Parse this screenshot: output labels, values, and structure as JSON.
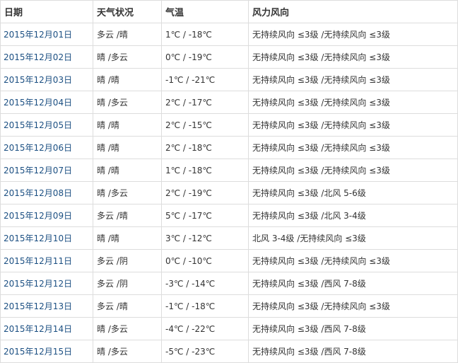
{
  "headers": [
    "日期",
    "天气状况",
    "气温",
    "风力风向"
  ],
  "rows": [
    [
      "2015年12月01日",
      "多云 /晴",
      "1℃ / -18℃",
      "无持续风向 ≤3级 /无持续风向 ≤3级"
    ],
    [
      "2015年12月02日",
      "晴 /多云",
      "0℃ / -19℃",
      "无持续风向 ≤3级 /无持续风向 ≤3级"
    ],
    [
      "2015年12月03日",
      "晴 /晴",
      "-1℃ / -21℃",
      "无持续风向 ≤3级 /无持续风向 ≤3级"
    ],
    [
      "2015年12月04日",
      "晴 /多云",
      "2℃ / -17℃",
      "无持续风向 ≤3级 /无持续风向 ≤3级"
    ],
    [
      "2015年12月05日",
      "晴 /晴",
      "2℃ / -15℃",
      "无持续风向 ≤3级 /无持续风向 ≤3级"
    ],
    [
      "2015年12月06日",
      "晴 /晴",
      "2℃ / -18℃",
      "无持续风向 ≤3级 /无持续风向 ≤3级"
    ],
    [
      "2015年12月07日",
      "晴 /晴",
      "1℃ / -18℃",
      "无持续风向 ≤3级 /无持续风向 ≤3级"
    ],
    [
      "2015年12月08日",
      "晴 /多云",
      "2℃ / -19℃",
      "无持续风向 ≤3级 /北风 5-6级"
    ],
    [
      "2015年12月09日",
      "多云 /晴",
      "5℃ / -17℃",
      "无持续风向 ≤3级 /北风 3-4级"
    ],
    [
      "2015年12月10日",
      "晴 /晴",
      "3℃ / -12℃",
      "北风 3-4级 /无持续风向 ≤3级"
    ],
    [
      "2015年12月11日",
      "多云 /阴",
      "0℃ / -10℃",
      "无持续风向 ≤3级 /无持续风向 ≤3级"
    ],
    [
      "2015年12月12日",
      "多云 /阴",
      "-3℃ / -14℃",
      "无持续风向 ≤3级 /西风 7-8级"
    ],
    [
      "2015年12月13日",
      "多云 /晴",
      "-1℃ / -18℃",
      "无持续风向 ≤3级 /无持续风向 ≤3级"
    ],
    [
      "2015年12月14日",
      "晴 /多云",
      "-4℃ / -22℃",
      "无持续风向 ≤3级 /西风 7-8级"
    ],
    [
      "2015年12月15日",
      "晴 /多云",
      "-5℃ / -23℃",
      "无持续风向 ≤3级 /西风 7-8级"
    ]
  ]
}
